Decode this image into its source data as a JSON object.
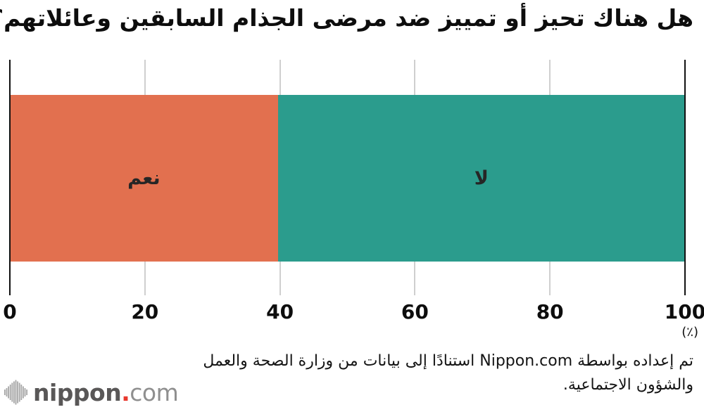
{
  "title": "هل هناك تحيز أو تمييز ضد مرضى الجذام السابقين وعائلاتهم؟",
  "chart_data": {
    "type": "bar",
    "orientation": "horizontal",
    "stacked": true,
    "title": "هل هناك تحيز أو تمييز ضد مرضى الجذام السابقين وعائلاتهم؟",
    "xlim": [
      0,
      100
    ],
    "tick_values": [
      0,
      20,
      40,
      60,
      80,
      100
    ],
    "tick_labels": [
      "0",
      "20",
      "40",
      "60",
      "80",
      "100"
    ],
    "unit_label": "(٪)",
    "grid": true,
    "legend_position": "none",
    "series": [
      {
        "key": "yes",
        "name": "نعم",
        "value": 39.7,
        "color": "#e2704f"
      },
      {
        "key": "no",
        "name": "لا",
        "value": 60.3,
        "color": "#2b9c8d"
      }
    ]
  },
  "footer": {
    "line1": "تم إعداده بواسطة Nippon.com استنادًا إلى بيانات من وزارة الصحة والعمل",
    "line2": "والشؤون الاجتماعية."
  },
  "logo": {
    "word_bold": "nippon",
    "dot": ".",
    "word_light": "com",
    "accent_color": "#e8392e"
  },
  "colors": {
    "yes_segment": "#e2704f",
    "no_segment": "#2b9c8d",
    "gridline": "#cfcfcf",
    "axis": "#111111",
    "text": "#111111"
  }
}
